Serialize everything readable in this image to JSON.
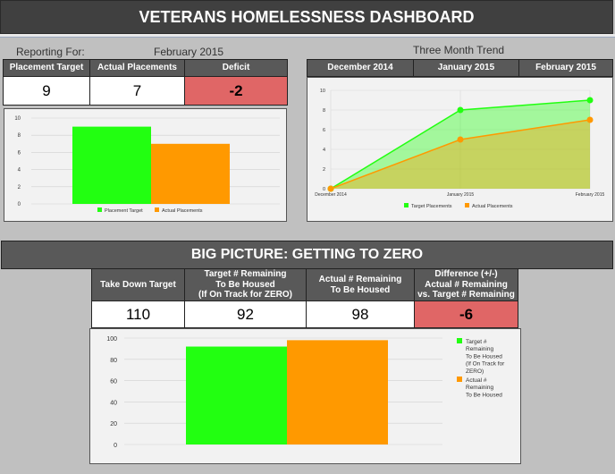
{
  "title": "VETERANS HOMELESSNESS DASHBOARD",
  "current": {
    "reporting_label": "Reporting For:",
    "reporting_value": "February 2015",
    "headers": [
      "Placement Target",
      "Actual Placements",
      "Deficit"
    ],
    "values": [
      "9",
      "7",
      "-2"
    ]
  },
  "trend": {
    "title": "Three Month Trend",
    "headers": [
      "December 2014",
      "January 2015",
      "February 2015"
    ]
  },
  "big_picture": {
    "title": "BIG PICTURE: GETTING TO ZERO",
    "headers": [
      "Take Down Target",
      "Target # Remaining To Be Housed (If On Track for ZERO)",
      "Actual # Remaining To Be Housed",
      "Difference (+/-) Actual # Remaining vs. Target # Remaining"
    ],
    "header_lines": [
      [
        "Take Down Target"
      ],
      [
        "Target # Remaining",
        "To Be Housed",
        "(If On Track for ZERO)"
      ],
      [
        "Actual # Remaining",
        "To Be Housed"
      ],
      [
        "Difference (+/-)",
        "Actual # Remaining",
        "vs. Target # Remaining"
      ]
    ],
    "values": [
      "110",
      "92",
      "98",
      "-6"
    ]
  },
  "colors": {
    "green": "#22ff11",
    "orange": "#ff9900",
    "deficit": "#e06666",
    "header": "#595959"
  },
  "chart_data": [
    {
      "type": "bar",
      "categories": [
        ""
      ],
      "series": [
        {
          "name": "Placement Target",
          "values": [
            9
          ],
          "color": "#22ff11"
        },
        {
          "name": "Actual Placements",
          "values": [
            7
          ],
          "color": "#ff9900"
        }
      ],
      "ylim": [
        0,
        10
      ],
      "yticks": [
        0,
        2,
        4,
        6,
        8,
        10
      ],
      "legend": "bottom",
      "grid": true
    },
    {
      "type": "area",
      "x": [
        "December 2014",
        "January 2015",
        "February 2015"
      ],
      "series": [
        {
          "name": "Target Placements",
          "values": [
            0,
            8,
            9
          ],
          "color": "#22ff11"
        },
        {
          "name": "Actual Placements",
          "values": [
            0,
            5,
            7
          ],
          "color": "#ff9900"
        }
      ],
      "ylim": [
        0,
        10
      ],
      "yticks": [
        0,
        2,
        4,
        6,
        8,
        10
      ],
      "legend": "bottom",
      "grid": true
    },
    {
      "type": "bar",
      "categories": [
        ""
      ],
      "series": [
        {
          "name": "Target # Remaining To Be Housed (If On Track for ZERO)",
          "legend_lines": [
            "Target #",
            "Remaining",
            "To Be Housed",
            "(If On Track for",
            "ZERO)"
          ],
          "values": [
            92
          ],
          "color": "#22ff11"
        },
        {
          "name": "Actual # Remaining To Be Housed",
          "legend_lines": [
            "Actual #",
            "Remaining",
            "To Be Housed"
          ],
          "values": [
            98
          ],
          "color": "#ff9900"
        }
      ],
      "ylim": [
        0,
        100
      ],
      "yticks": [
        0,
        20,
        40,
        60,
        80,
        100
      ],
      "legend": "right",
      "grid": true
    }
  ]
}
